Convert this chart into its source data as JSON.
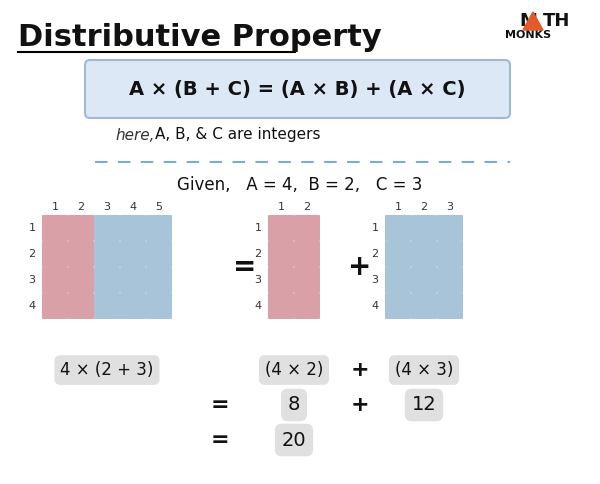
{
  "title": "Distributive Property",
  "formula": "A × (B + C) = (A × B) + (A × C)",
  "here_text": "here,",
  "integers_text": "A, B, & C are integers",
  "given_text": "Given,   A = 4,  B = 2,   C = 3",
  "label1": "4 × (2 + 3)",
  "label2": "(4 × 2)",
  "label3": "(4 × 3)",
  "eq1": "8",
  "eq2": "12",
  "eq3": "20",
  "pink_color": "#d9a0a8",
  "blue_color": "#a8c4d9",
  "bg_color": "#ffffff",
  "formula_bg": "#dce8f5",
  "formula_border": "#a0b8d8",
  "label_bg": "#e0e0e0",
  "dashed_color": "#7aabdc",
  "title_underline": "#000000",
  "logo_triangle_color": "#e05c2a",
  "logo_text_color": "#1a1a1a"
}
